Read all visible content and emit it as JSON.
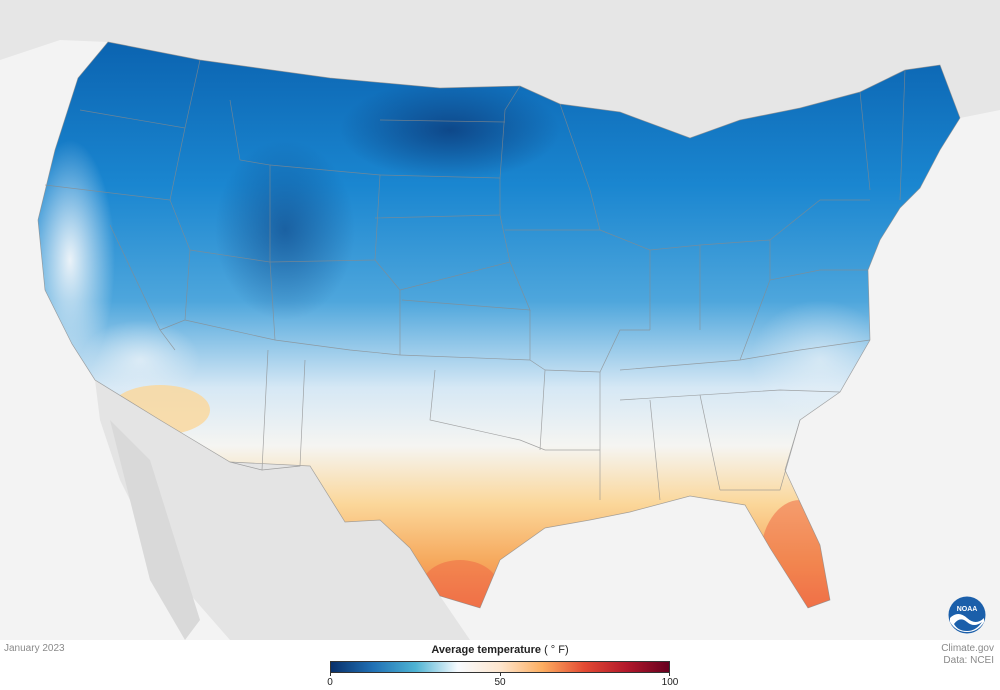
{
  "date_label": "January 2023",
  "legend": {
    "title": "Average temperature",
    "unit": "( ° F)",
    "min": 0,
    "mid": 50,
    "max": 100,
    "colors": [
      "#08306b",
      "#2171b5",
      "#4eb3d3",
      "#f7fbff",
      "#fee6ce",
      "#fdae61",
      "#e34a33",
      "#b2182b",
      "#67001f"
    ]
  },
  "credit": {
    "line1": "Climate.gov",
    "line2": "Data: NCEI"
  },
  "logo": {
    "name": "noaa-logo",
    "text": "NOAA",
    "color": "#1b5faa"
  }
}
